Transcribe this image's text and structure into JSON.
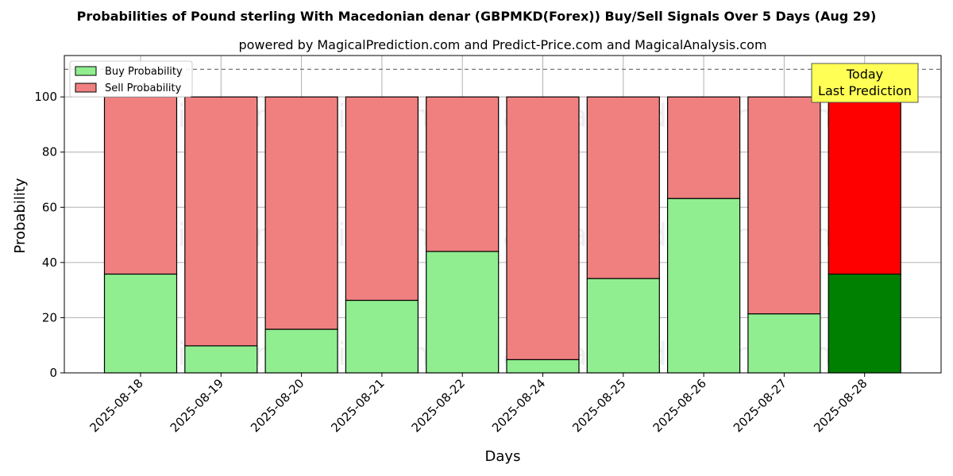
{
  "title": "Probabilities of Pound sterling With Macedonian denar (GBPMKD(Forex)) Buy/Sell Signals Over 5 Days (Aug 29)",
  "subtitle": "powered by MagicalPrediction.com and Predict-Price.com and MagicalAnalysis.com",
  "watermarks": [
    "MagicalAnalysis.com",
    "MagicalPrediction.com"
  ],
  "annotation": {
    "line1": "Today",
    "line2": "Last Prediction",
    "color": "#ffff55"
  },
  "colors": {
    "buy": "#90ee90",
    "sell": "#f08080",
    "buy_highlight": "#008000",
    "sell_highlight": "#ff0000"
  },
  "chart_data": {
    "type": "bar",
    "stacked": true,
    "categories": [
      "2025-08-18",
      "2025-08-19",
      "2025-08-20",
      "2025-08-21",
      "2025-08-22",
      "2025-08-24",
      "2025-08-25",
      "2025-08-26",
      "2025-08-27",
      "2025-08-28"
    ],
    "series": [
      {
        "name": "Buy Probability",
        "values": [
          35.8,
          9.8,
          15.8,
          26.3,
          44.0,
          4.8,
          34.2,
          63.2,
          21.4,
          35.8
        ]
      },
      {
        "name": "Sell Probability",
        "values": [
          64.2,
          90.2,
          84.2,
          73.7,
          56.0,
          95.2,
          65.8,
          36.8,
          78.6,
          64.2
        ]
      }
    ],
    "highlight_index": 9,
    "xlabel": "Days",
    "ylabel": "Probability",
    "ylim": [
      0,
      115
    ],
    "yticks": [
      0,
      20,
      40,
      60,
      80,
      100
    ],
    "reference_line": 110,
    "grid": true,
    "legend_position": "top-left"
  }
}
